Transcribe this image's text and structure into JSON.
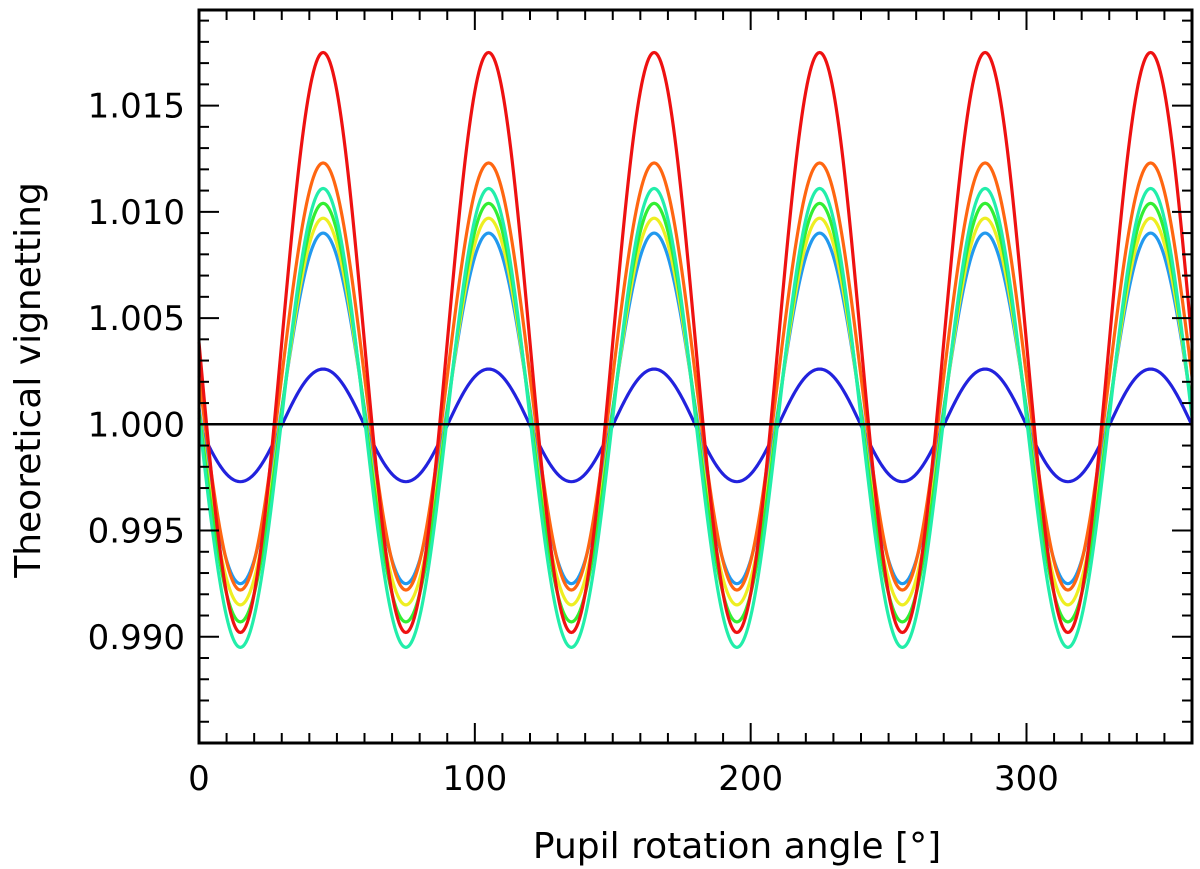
{
  "chart_data": {
    "type": "line",
    "title": "",
    "xlabel": "Pupil rotation angle [°]",
    "ylabel": "Theoretical vignetting",
    "xlim": [
      0,
      360
    ],
    "ylim": [
      0.985,
      1.0195
    ],
    "x_ticks": [
      0,
      100,
      200,
      300
    ],
    "x_tick_labels": [
      "0",
      "100",
      "200",
      "300"
    ],
    "y_ticks": [
      0.99,
      0.995,
      1.0,
      1.005,
      1.01,
      1.015
    ],
    "y_tick_labels": [
      "0.990",
      "0.995",
      "1.000",
      "1.005",
      "1.010",
      "1.015"
    ],
    "period_deg": 60,
    "first_peak_deg": 45,
    "reference_line": {
      "y": 1.0,
      "color": "#000000"
    },
    "series": [
      {
        "name": "blue",
        "color": "#2222dd",
        "max": 1.0026,
        "min": 0.9973
      },
      {
        "name": "light-blue",
        "color": "#2299ee",
        "max": 1.009,
        "min": 0.9925
      },
      {
        "name": "yellow",
        "color": "#eeee22",
        "max": 1.0097,
        "min": 0.9915
      },
      {
        "name": "green",
        "color": "#33ee33",
        "max": 1.0104,
        "min": 0.9907
      },
      {
        "name": "cyan-green",
        "color": "#22eeaa",
        "max": 1.0111,
        "min": 0.9895
      },
      {
        "name": "orange",
        "color": "#ff6611",
        "max": 1.0123,
        "min": 0.9922
      },
      {
        "name": "red",
        "color": "#ee1111",
        "max": 1.0175,
        "min": 0.9902
      }
    ]
  }
}
